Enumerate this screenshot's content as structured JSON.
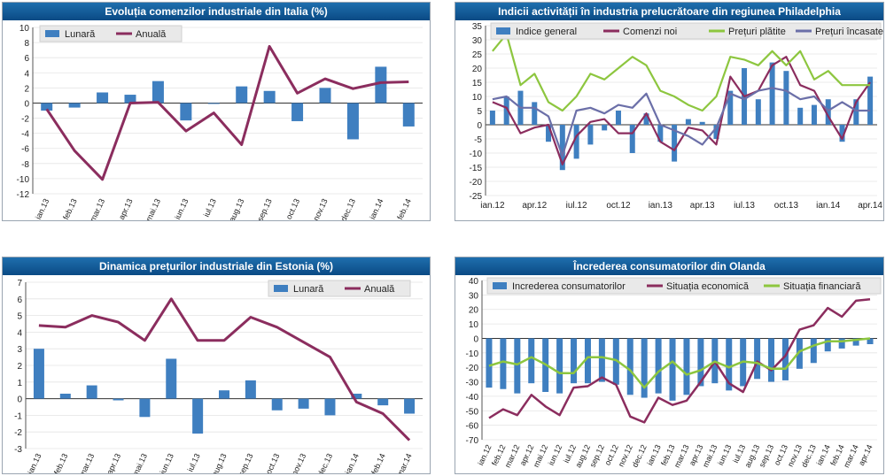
{
  "chart_data": [
    {
      "id": "p1",
      "type": "bar+line",
      "title": "Evoluția comenzilor industriale din Italia (%)",
      "categories": [
        "ian.13",
        "feb.13",
        "mar.13",
        "apr.13",
        "mai.13",
        "iun.13",
        "iul.13",
        "aug.13",
        "sep.13",
        "oct.13",
        "nov.13",
        "dec.13",
        "ian.14",
        "feb.14"
      ],
      "series": [
        {
          "name": "Lunară",
          "kind": "bar",
          "color": "#3f7fc0",
          "values": [
            -1.0,
            -0.6,
            1.4,
            1.1,
            2.9,
            -2.3,
            0.0,
            2.2,
            1.6,
            -2.4,
            2.0,
            -4.8,
            4.8,
            -3.1
          ]
        },
        {
          "name": "Anuală",
          "kind": "line",
          "color": "#8b2d5e",
          "values": [
            -0.8,
            -6.3,
            -10.1,
            0.0,
            0.1,
            -3.7,
            -1.3,
            -5.5,
            7.5,
            1.3,
            3.2,
            1.9,
            2.7,
            2.8
          ]
        }
      ],
      "yticks": [
        -12,
        -10,
        -8,
        -6,
        -4,
        -2,
        0,
        2,
        4,
        6,
        8,
        10
      ],
      "ylim": [
        -12,
        10
      ],
      "legend_position": "top-left"
    },
    {
      "id": "p2",
      "type": "bar+line",
      "title": "Indicii activității în industria prelucrătoare din regiunea Philadelphia",
      "categories": [
        "ian.12",
        "feb.12",
        "mar.12",
        "apr.12",
        "mai.12",
        "iun.12",
        "iul.12",
        "aug.12",
        "sep.12",
        "oct.12",
        "nov.12",
        "dec.12",
        "ian.13",
        "feb.13",
        "mar.13",
        "apr.13",
        "mai.13",
        "iun.13",
        "iul.13",
        "aug.13",
        "sep.13",
        "oct.13",
        "nov.13",
        "dec.13",
        "ian.14",
        "feb.14",
        "mar.14",
        "apr.14"
      ],
      "xlabels": [
        "ian.12",
        "apr.12",
        "iul.12",
        "oct.12",
        "ian.13",
        "apr.13",
        "iul.13",
        "oct.13",
        "ian.14",
        "apr.14"
      ],
      "series": [
        {
          "name": "Indice general",
          "kind": "bar",
          "color": "#3f7fc0",
          "values": [
            5,
            10,
            12,
            8,
            -6,
            -16,
            -12,
            -7,
            -2,
            5,
            -10,
            4,
            -6,
            -13,
            2,
            1,
            -5,
            12,
            20,
            9,
            22,
            19,
            6,
            7,
            9,
            -6,
            9,
            17
          ]
        },
        {
          "name": "Comenzi noi",
          "kind": "line",
          "color": "#8b2d5e",
          "values": [
            8,
            6,
            -3,
            -1,
            0,
            -14,
            -4,
            1,
            2,
            -3,
            -3,
            4,
            -6,
            -9,
            -1,
            -2,
            -7,
            17,
            10,
            12,
            21,
            24,
            14,
            12,
            3,
            -5,
            8,
            15
          ]
        },
        {
          "name": "Prețuri plătite",
          "kind": "line",
          "color": "#8dc63f",
          "values": [
            26,
            32,
            14,
            18,
            8,
            5,
            10,
            18,
            16,
            20,
            24,
            21,
            12,
            10,
            7,
            5,
            10,
            24,
            23,
            21,
            26,
            21,
            26,
            16,
            19,
            14,
            14,
            14
          ]
        },
        {
          "name": "Prețuri încasate",
          "kind": "line",
          "color": "#6b6fa8",
          "values": [
            9,
            10,
            6,
            6,
            3,
            -11,
            5,
            6,
            4,
            7,
            6,
            11,
            0,
            -2,
            -4,
            -7,
            -1,
            11,
            9,
            12,
            13,
            12,
            9,
            10,
            5,
            8,
            5,
            5
          ]
        }
      ],
      "yticks": [
        -25,
        -20,
        -15,
        -10,
        -5,
        0,
        5,
        10,
        15,
        20,
        25,
        30,
        35
      ],
      "ylim": [
        -25,
        35
      ],
      "legend_position": "top"
    },
    {
      "id": "p3",
      "type": "bar+line",
      "title": "Dinamica prețurilor industriale din Estonia (%)",
      "categories": [
        "ian.13",
        "feb.13",
        "mar.13",
        "apr.13",
        "mai.13",
        "iun.13",
        "iul.13",
        "aug.13",
        "sep.13",
        "oct.13",
        "nov.13",
        "dec.13",
        "ian.14",
        "feb.14",
        "mar.14"
      ],
      "series": [
        {
          "name": "Lunară",
          "kind": "bar",
          "color": "#3f7fc0",
          "values": [
            3.0,
            0.3,
            0.8,
            -0.1,
            -1.1,
            2.4,
            -2.1,
            0.5,
            1.1,
            -0.7,
            -0.6,
            -1.0,
            0.3,
            -0.4,
            -0.9
          ]
        },
        {
          "name": "Anuală",
          "kind": "line",
          "color": "#8b2d5e",
          "values": [
            4.4,
            4.3,
            5.0,
            4.6,
            3.5,
            6.0,
            3.5,
            3.5,
            4.9,
            4.3,
            3.4,
            2.5,
            -0.2,
            -0.9,
            -2.5
          ]
        }
      ],
      "yticks": [
        -3,
        -2,
        -1,
        0,
        1,
        2,
        3,
        4,
        5,
        6,
        7
      ],
      "ylim": [
        -3,
        7
      ],
      "legend_position": "top-right"
    },
    {
      "id": "p4",
      "type": "bar+line",
      "title": "Încrederea consumatorilor din Olanda",
      "categories": [
        "ian.12",
        "feb.12",
        "mar.12",
        "apr.12",
        "mai.12",
        "iun.12",
        "iul.12",
        "aug.12",
        "sep.12",
        "oct.12",
        "nov.12",
        "dec.12",
        "ian.13",
        "feb.13",
        "mar.13",
        "apr.13",
        "mai.13",
        "iun.13",
        "iul.13",
        "aug.13",
        "sep.13",
        "oct.13",
        "nov.13",
        "dec.13",
        "ian.14",
        "feb.14",
        "mar.14",
        "apr.14"
      ],
      "series": [
        {
          "name": "Increderea consumatorilor",
          "kind": "bar",
          "color": "#3f7fc0",
          "values": [
            -34,
            -35,
            -38,
            -31,
            -37,
            -38,
            -31,
            -31,
            -30,
            -32,
            -39,
            -41,
            -38,
            -43,
            -39,
            -33,
            -31,
            -36,
            -33,
            -28,
            -30,
            -29,
            -21,
            -17,
            -9,
            -7,
            -5,
            -4
          ]
        },
        {
          "name": "Situația economică",
          "kind": "line",
          "color": "#8b2d5e",
          "values": [
            -55,
            -49,
            -53,
            -39,
            -47,
            -53,
            -34,
            -33,
            -27,
            -32,
            -54,
            -58,
            -41,
            -46,
            -43,
            -30,
            -16,
            -31,
            -37,
            -16,
            -22,
            -12,
            6,
            9,
            21,
            15,
            26,
            27
          ]
        },
        {
          "name": "Situația financiară",
          "kind": "line",
          "color": "#8dc63f",
          "values": [
            -19,
            -16,
            -18,
            -13,
            -18,
            -24,
            -24,
            -13,
            -13,
            -15,
            -22,
            -34,
            -23,
            -16,
            -25,
            -22,
            -16,
            -20,
            -16,
            -17,
            -21,
            -21,
            -9,
            -5,
            -2,
            -2,
            -1,
            0
          ]
        }
      ],
      "yticks": [
        -70,
        -60,
        -50,
        -40,
        -30,
        -20,
        -10,
        0,
        10,
        20,
        30,
        40
      ],
      "ylim": [
        -70,
        40
      ],
      "legend_position": "top"
    }
  ]
}
